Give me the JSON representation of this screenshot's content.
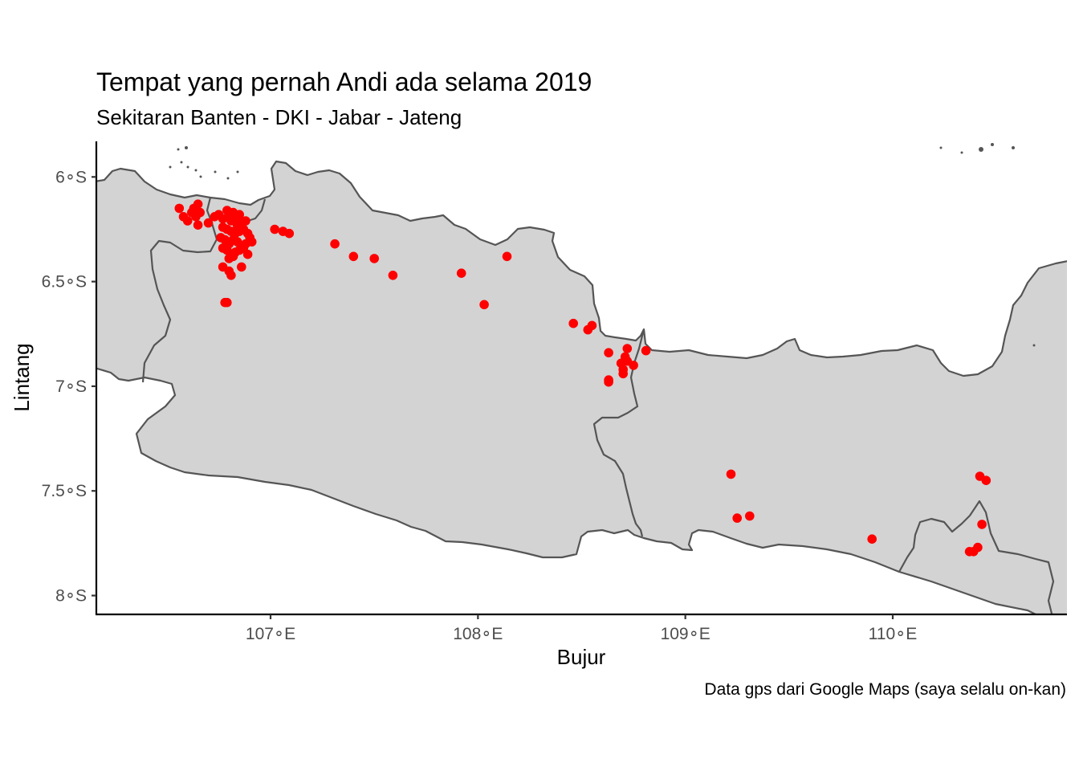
{
  "chart_data": {
    "type": "scatter",
    "title": "Tempat yang pernah Andi ada selama 2019",
    "subtitle": "Sekitaran Banten - DKI - Jabar - Jateng",
    "xlabel": "Bujur",
    "ylabel": "Lintang",
    "caption": "Data gps dari Google Maps (saya selalu on-kan)",
    "x_ticks": [
      {
        "value": 107,
        "label": "107∘E"
      },
      {
        "value": 108,
        "label": "108∘E"
      },
      {
        "value": 109,
        "label": "109∘E"
      },
      {
        "value": 110,
        "label": "110∘E"
      }
    ],
    "y_ticks": [
      {
        "value": -6.0,
        "label": "6∘S"
      },
      {
        "value": -6.5,
        "label": "6.5∘S"
      },
      {
        "value": -7.0,
        "label": "7∘S"
      },
      {
        "value": -7.5,
        "label": "7.5∘S"
      },
      {
        "value": -8.0,
        "label": "8∘S"
      }
    ],
    "xlim": [
      106.16,
      110.84
    ],
    "ylim": [
      -8.09,
      -5.83
    ],
    "point_color": "#ff0000",
    "land_color": "#d3d3d3",
    "border_color": "#555555",
    "grid": false,
    "legend": "none",
    "points": [
      [
        106.56,
        -6.15
      ],
      [
        106.58,
        -6.19
      ],
      [
        106.6,
        -6.21
      ],
      [
        106.62,
        -6.17
      ],
      [
        106.63,
        -6.15
      ],
      [
        106.65,
        -6.13
      ],
      [
        106.64,
        -6.19
      ],
      [
        106.65,
        -6.23
      ],
      [
        106.66,
        -6.17
      ],
      [
        106.7,
        -6.22
      ],
      [
        106.73,
        -6.19
      ],
      [
        106.75,
        -6.18
      ],
      [
        106.77,
        -6.2
      ],
      [
        106.79,
        -6.16
      ],
      [
        106.8,
        -6.19
      ],
      [
        106.81,
        -6.21
      ],
      [
        106.82,
        -6.17
      ],
      [
        106.83,
        -6.2
      ],
      [
        106.84,
        -6.23
      ],
      [
        106.85,
        -6.18
      ],
      [
        106.86,
        -6.22
      ],
      [
        106.88,
        -6.21
      ],
      [
        106.77,
        -6.24
      ],
      [
        106.79,
        -6.25
      ],
      [
        106.81,
        -6.26
      ],
      [
        106.83,
        -6.27
      ],
      [
        106.85,
        -6.26
      ],
      [
        106.87,
        -6.25
      ],
      [
        106.89,
        -6.27
      ],
      [
        106.9,
        -6.29
      ],
      [
        106.76,
        -6.29
      ],
      [
        106.78,
        -6.3
      ],
      [
        106.8,
        -6.32
      ],
      [
        106.82,
        -6.3
      ],
      [
        106.84,
        -6.31
      ],
      [
        106.86,
        -6.33
      ],
      [
        106.88,
        -6.32
      ],
      [
        106.91,
        -6.31
      ],
      [
        106.77,
        -6.34
      ],
      [
        106.79,
        -6.35
      ],
      [
        106.81,
        -6.37
      ],
      [
        106.83,
        -6.36
      ],
      [
        106.85,
        -6.35
      ],
      [
        106.87,
        -6.34
      ],
      [
        106.89,
        -6.37
      ],
      [
        106.8,
        -6.39
      ],
      [
        106.82,
        -6.38
      ],
      [
        106.86,
        -6.43
      ],
      [
        106.77,
        -6.43
      ],
      [
        106.8,
        -6.45
      ],
      [
        106.81,
        -6.47
      ],
      [
        106.78,
        -6.6
      ],
      [
        106.79,
        -6.6
      ],
      [
        107.02,
        -6.25
      ],
      [
        107.06,
        -6.26
      ],
      [
        107.09,
        -6.27
      ],
      [
        107.31,
        -6.32
      ],
      [
        107.4,
        -6.38
      ],
      [
        107.5,
        -6.39
      ],
      [
        107.59,
        -6.47
      ],
      [
        107.92,
        -6.46
      ],
      [
        108.03,
        -6.61
      ],
      [
        108.14,
        -6.38
      ],
      [
        108.46,
        -6.7
      ],
      [
        108.53,
        -6.73
      ],
      [
        108.55,
        -6.71
      ],
      [
        108.63,
        -6.84
      ],
      [
        108.72,
        -6.82
      ],
      [
        108.81,
        -6.83
      ],
      [
        108.71,
        -6.86
      ],
      [
        108.69,
        -6.89
      ],
      [
        108.72,
        -6.88
      ],
      [
        108.75,
        -6.9
      ],
      [
        108.7,
        -6.92
      ],
      [
        108.7,
        -6.94
      ],
      [
        108.63,
        -6.97
      ],
      [
        108.63,
        -6.98
      ],
      [
        109.22,
        -7.42
      ],
      [
        109.25,
        -7.63
      ],
      [
        109.31,
        -7.62
      ],
      [
        109.9,
        -7.73
      ],
      [
        110.37,
        -7.79
      ],
      [
        110.39,
        -7.79
      ],
      [
        110.41,
        -7.77
      ],
      [
        110.42,
        -7.43
      ],
      [
        110.45,
        -7.45
      ],
      [
        110.43,
        -7.66
      ]
    ]
  }
}
